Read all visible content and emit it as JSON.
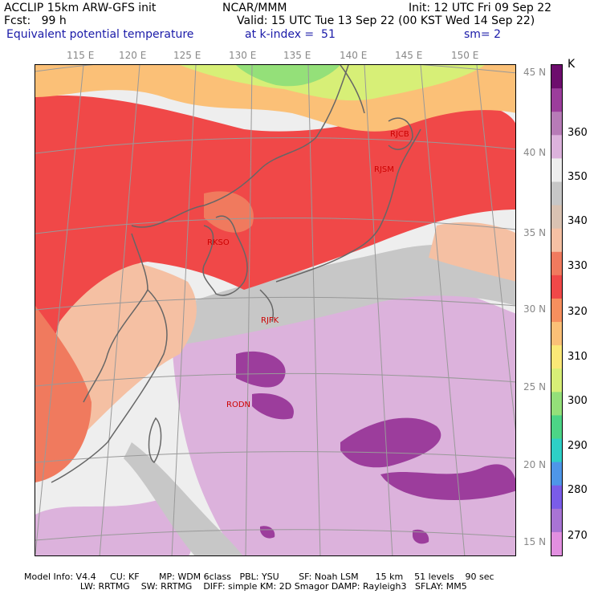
{
  "header": {
    "line1_left": "ACCLIP 15km ARW-GFS init",
    "line1_center": "NCAR/MMM",
    "line1_right": "Init: 12 UTC Fri 09 Sep 22",
    "line2_left": "Fcst:   99 h",
    "line2_right": "Valid: 15 UTC Tue 13 Sep 22 (00 KST Wed 14 Sep 22)",
    "line3_left": "Equivalent potential temperature",
    "line3_center": "at k-index =  51",
    "line3_right": "sm= 2"
  },
  "map": {
    "lon_labels": [
      "115 E",
      "120 E",
      "125 E",
      "130 E",
      "135 E",
      "140 E",
      "145 E",
      "150 E"
    ],
    "lat_labels": [
      "45 N",
      "40 N",
      "35 N",
      "30 N",
      "25 N",
      "20 N",
      "15 N"
    ],
    "stations": [
      "RJCB",
      "RJSM",
      "RKSO",
      "RJFK",
      "RODN"
    ]
  },
  "colorbar": {
    "unit": "K",
    "labels": [
      "360",
      "350",
      "340",
      "330",
      "320",
      "310",
      "300",
      "290",
      "280",
      "270"
    ],
    "colors": [
      "#6d0d6d",
      "#9c3d9c",
      "#b77bb7",
      "#dcb2dc",
      "#eeeeee",
      "#c7c7c7",
      "#d9c2b2",
      "#f5c0a3",
      "#f07a5e",
      "#f04848",
      "#f78f5e",
      "#fbc077",
      "#fbe877",
      "#d7ef77",
      "#94e079",
      "#4cd486",
      "#2ecfc6",
      "#4e96e8",
      "#7a5ce8",
      "#a874d4",
      "#e28fe0"
    ]
  },
  "footer": {
    "line1": "Model Info: V4.4     CU: KF       MP: WDM 6class   PBL: YSU       SF: Noah LSM      15 km    51 levels    90 sec",
    "line2": "                    LW: RRTMG    SW: RRTMG    DIFF: simple KM: 2D Smagor DAMP: Rayleigh3   SFLAY: MM5"
  }
}
